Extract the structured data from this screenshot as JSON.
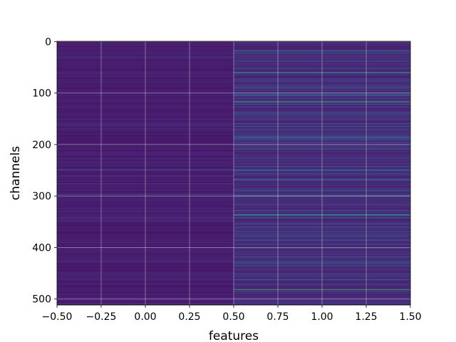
{
  "chart_data": {
    "type": "heatmap",
    "title": "",
    "xlabel": "features",
    "ylabel": "channels",
    "xlim": [
      -0.5,
      1.5
    ],
    "ylim": [
      511.5,
      -0.5
    ],
    "x_ticks": [
      -0.5,
      -0.25,
      0.0,
      0.25,
      0.5,
      0.75,
      1.0,
      1.25,
      1.5
    ],
    "x_tick_labels": [
      "−0.50",
      "−0.25",
      "0.00",
      "0.25",
      "0.50",
      "0.75",
      "1.00",
      "1.25",
      "1.50"
    ],
    "y_ticks": [
      0,
      100,
      200,
      300,
      400,
      500
    ],
    "y_tick_labels": [
      "0",
      "100",
      "200",
      "300",
      "400",
      "500"
    ],
    "grid": true,
    "colormap": "viridis",
    "columns": [
      0,
      1
    ],
    "rows": 512,
    "value_range": [
      0,
      1
    ],
    "column_0_level": 0.06,
    "column_1_level": 0.1,
    "column_1_highlights": [
      {
        "channel": 18,
        "value": 0.45
      },
      {
        "channel": 22,
        "value": 0.3
      },
      {
        "channel": 60,
        "value": 0.65
      },
      {
        "channel": 63,
        "value": 0.3
      },
      {
        "channel": 85,
        "value": 0.3
      },
      {
        "channel": 100,
        "value": 0.35
      },
      {
        "channel": 104,
        "value": 0.4
      },
      {
        "channel": 117,
        "value": 0.7
      },
      {
        "channel": 140,
        "value": 0.3
      },
      {
        "channel": 160,
        "value": 0.3
      },
      {
        "channel": 165,
        "value": 0.4
      },
      {
        "channel": 172,
        "value": 0.3
      },
      {
        "channel": 186,
        "value": 0.35
      },
      {
        "channel": 190,
        "value": 0.3
      },
      {
        "channel": 200,
        "value": 0.3
      },
      {
        "channel": 243,
        "value": 0.3
      },
      {
        "channel": 250,
        "value": 0.35
      },
      {
        "channel": 256,
        "value": 0.3
      },
      {
        "channel": 268,
        "value": 0.4
      },
      {
        "channel": 300,
        "value": 0.55
      },
      {
        "channel": 336,
        "value": 0.65
      },
      {
        "channel": 338,
        "value": 0.3
      },
      {
        "channel": 360,
        "value": 0.3
      },
      {
        "channel": 393,
        "value": 0.3
      },
      {
        "channel": 402,
        "value": 0.3
      },
      {
        "channel": 418,
        "value": 0.3
      },
      {
        "channel": 430,
        "value": 0.45
      },
      {
        "channel": 434,
        "value": 0.3
      },
      {
        "channel": 462,
        "value": 0.3
      },
      {
        "channel": 482,
        "value": 0.7
      },
      {
        "channel": 486,
        "value": 0.3
      }
    ]
  }
}
